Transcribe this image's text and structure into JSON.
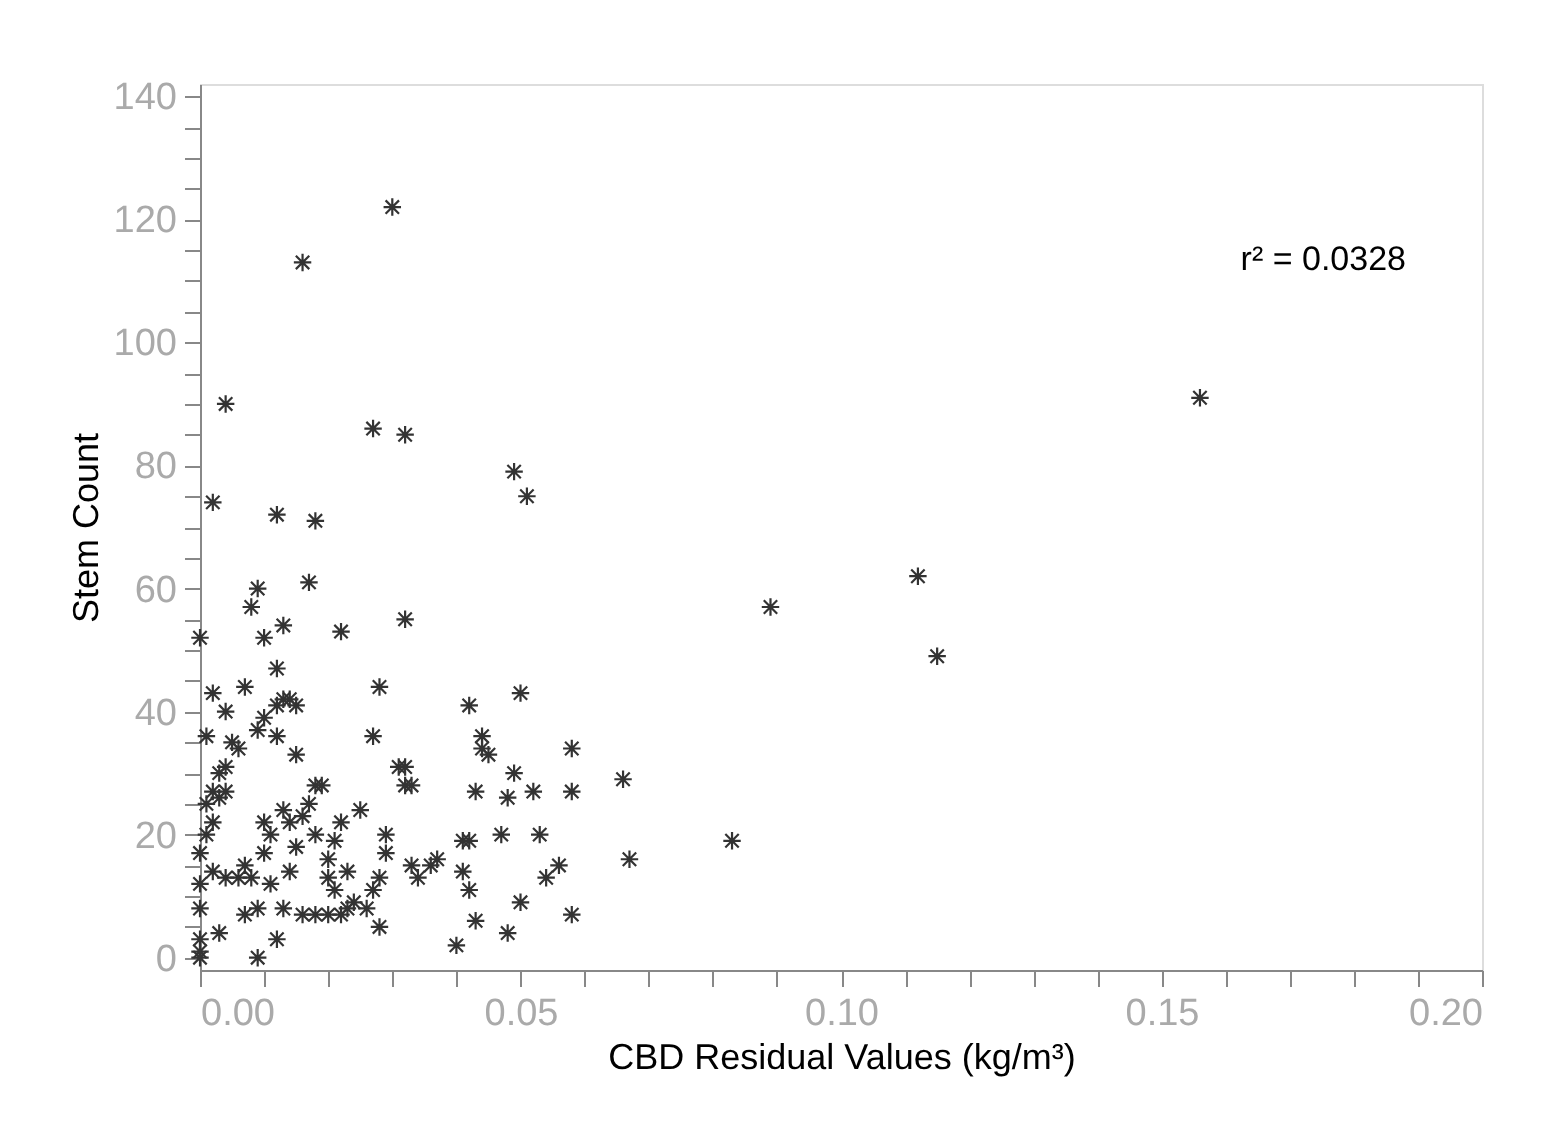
{
  "chart_data": {
    "type": "scatter",
    "xlabel": "CBD Residual Values (kg/m³)",
    "ylabel": "Stem Count",
    "annotations": [
      "r² = 0.0328"
    ],
    "xlim": [
      0,
      0.2
    ],
    "ylim": [
      -2,
      142
    ],
    "xticks": [
      {
        "value": 0,
        "label": "0.00"
      },
      {
        "value": 0.01,
        "label": null
      },
      {
        "value": 0.02,
        "label": null
      },
      {
        "value": 0.03,
        "label": null
      },
      {
        "value": 0.04,
        "label": null
      },
      {
        "value": 0.05,
        "label": "0.05"
      },
      {
        "value": 0.06,
        "label": null
      },
      {
        "value": 0.07,
        "label": null
      },
      {
        "value": 0.08,
        "label": null
      },
      {
        "value": 0.09,
        "label": null
      },
      {
        "value": 0.1,
        "label": "0.10"
      },
      {
        "value": 0.11,
        "label": null
      },
      {
        "value": 0.12,
        "label": null
      },
      {
        "value": 0.13,
        "label": null
      },
      {
        "value": 0.14,
        "label": null
      },
      {
        "value": 0.15,
        "label": "0.15"
      },
      {
        "value": 0.16,
        "label": null
      },
      {
        "value": 0.17,
        "label": null
      },
      {
        "value": 0.18,
        "label": null
      },
      {
        "value": 0.19,
        "label": null
      },
      {
        "value": 0.2,
        "label": "0.20"
      }
    ],
    "yticks": [
      0,
      {
        "value": 5,
        "label": null
      },
      {
        "value": 10,
        "label": null
      },
      {
        "value": 15,
        "label": null
      },
      20,
      {
        "value": 25,
        "label": null
      },
      {
        "value": 30,
        "label": null
      },
      {
        "value": 35,
        "label": null
      },
      40,
      {
        "value": 45,
        "label": null
      },
      {
        "value": 50,
        "label": null
      },
      {
        "value": 55,
        "label": null
      },
      60,
      {
        "value": 65,
        "label": null
      },
      {
        "value": 70,
        "label": null
      },
      {
        "value": 75,
        "label": null
      },
      80,
      {
        "value": 85,
        "label": null
      },
      {
        "value": 90,
        "label": null
      },
      {
        "value": 95,
        "label": null
      },
      100,
      {
        "value": 105,
        "label": null
      },
      {
        "value": 110,
        "label": null
      },
      {
        "value": 115,
        "label": null
      },
      120,
      {
        "value": 125,
        "label": null
      },
      {
        "value": 130,
        "label": null
      },
      {
        "value": 135,
        "label": null
      },
      140
    ],
    "grid": false,
    "marker": "cross",
    "series": [
      {
        "color": "#333333",
        "x": [
          0.03,
          0.016,
          0.004,
          0.027,
          0.032,
          0.049,
          0.051,
          0.002,
          0.012,
          0.018,
          0.017,
          0.009,
          0.013,
          0.032,
          0.022,
          0.0,
          0.008,
          0.01,
          0.156,
          0.112,
          0.115,
          0.089,
          0.083,
          0.066,
          0.067,
          0.058,
          0.058,
          0.058,
          0.056,
          0.053,
          0.054,
          0.05,
          0.052,
          0.049,
          0.048,
          0.05,
          0.048,
          0.047,
          0.044,
          0.044,
          0.045,
          0.042,
          0.043,
          0.041,
          0.042,
          0.042,
          0.04,
          0.041,
          0.043,
          0.037,
          0.034,
          0.032,
          0.032,
          0.031,
          0.033,
          0.033,
          0.029,
          0.029,
          0.028,
          0.027,
          0.028,
          0.028,
          0.027,
          0.025,
          0.026,
          0.024,
          0.023,
          0.022,
          0.021,
          0.02,
          0.02,
          0.022,
          0.018,
          0.018,
          0.017,
          0.016,
          0.015,
          0.014,
          0.013,
          0.012,
          0.015,
          0.016,
          0.015,
          0.014,
          0.013,
          0.012,
          0.012,
          0.011,
          0.01,
          0.01,
          0.009,
          0.008,
          0.007,
          0.007,
          0.01,
          0.009,
          0.007,
          0.006,
          0.005,
          0.004,
          0.004,
          0.003,
          0.003,
          0.002,
          0.002,
          0.002,
          0.001,
          0.001,
          0.0,
          0.0,
          0.0,
          0.0,
          0.0,
          0.0,
          0.002,
          0.001,
          0.004,
          0.006,
          0.004,
          0.003,
          0.012,
          0.009,
          0.018,
          0.02,
          0.011,
          0.014,
          0.013,
          0.019,
          0.021,
          0.023,
          0.036
        ],
        "values": [
          122,
          113,
          90,
          86,
          85,
          79,
          75,
          74,
          72,
          71,
          61,
          60,
          54,
          55,
          53,
          52,
          57,
          52,
          91,
          62,
          49,
          57,
          19,
          29,
          16,
          34,
          27,
          7,
          15,
          20,
          13,
          43,
          27,
          30,
          26,
          9,
          4,
          20,
          34,
          36,
          33,
          41,
          27,
          19,
          19,
          11,
          2,
          14,
          6,
          16,
          13,
          31,
          28,
          31,
          28,
          15,
          20,
          17,
          44,
          36,
          5,
          13,
          11,
          24,
          8,
          9,
          14,
          22,
          19,
          16,
          7,
          7,
          28,
          20,
          25,
          23,
          41,
          42,
          42,
          41,
          33,
          7,
          18,
          22,
          24,
          47,
          36,
          20,
          22,
          17,
          8,
          13,
          7,
          15,
          39,
          37,
          44,
          34,
          35,
          40,
          31,
          30,
          26,
          27,
          22,
          14,
          25,
          20,
          17,
          12,
          8,
          3,
          1,
          0,
          43,
          36,
          27,
          13,
          13,
          4,
          3,
          0,
          7,
          13,
          12,
          14,
          8,
          28,
          11,
          8,
          15
        ]
      }
    ]
  }
}
